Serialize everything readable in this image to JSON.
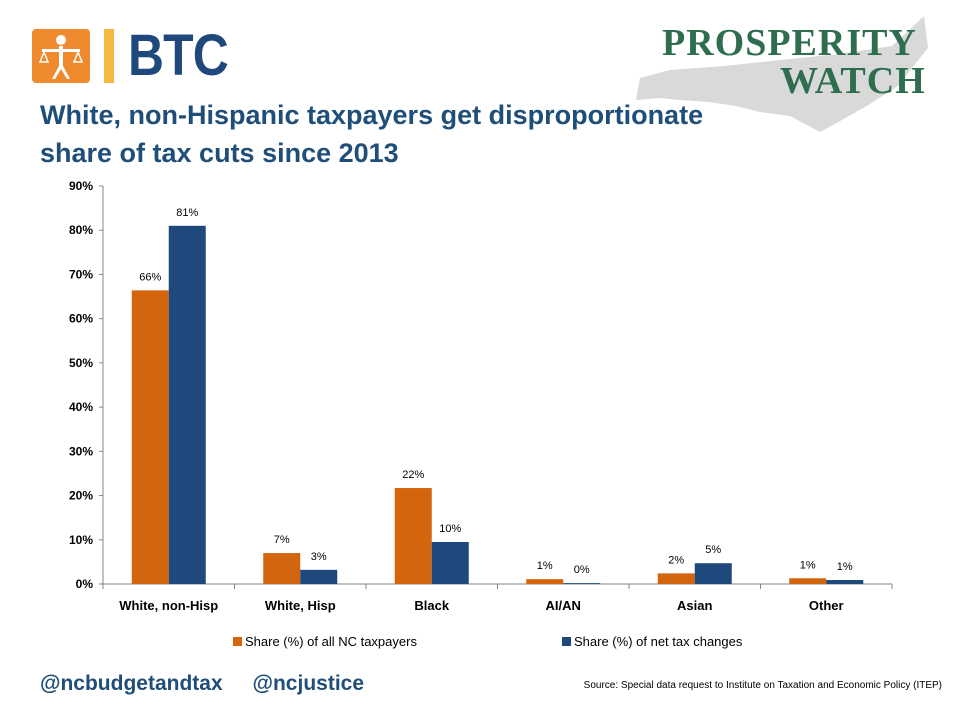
{
  "logos": {
    "btc_text": "BTC",
    "prosperity_line1": "PROSPERITY",
    "prosperity_line2": "WATCH"
  },
  "title": "White, non-Hispanic taxpayers get disproportionate share of tax cuts since 2013",
  "chart_data": {
    "type": "bar",
    "categories": [
      "White, non-Hisp",
      "White, Hisp",
      "Black",
      "AI/AN",
      "Asian",
      "Other"
    ],
    "series": [
      {
        "name": "Share (%) of all NC taxpayers",
        "color": "#d4650f",
        "values": [
          66.4,
          7,
          21.7,
          1.1,
          2.4,
          1.3
        ],
        "labels": [
          "66%",
          "7%",
          "22%",
          "1%",
          "2%",
          "1%"
        ]
      },
      {
        "name": "Share (%) of net tax changes",
        "color": "#1f497d",
        "values": [
          81,
          3.2,
          9.5,
          0.2,
          4.7,
          0.9
        ],
        "labels": [
          "81%",
          "3%",
          "10%",
          "0%",
          "5%",
          "1%"
        ]
      }
    ],
    "ylim": [
      0,
      90
    ],
    "yticks": [
      "0%",
      "10%",
      "20%",
      "30%",
      "40%",
      "50%",
      "60%",
      "70%",
      "80%",
      "90%"
    ],
    "grid": false,
    "legend_position": "bottom"
  },
  "footer": {
    "handle1": "@ncbudgetandtax",
    "handle2": "@ncjustice",
    "source": "Source: Special data request to Institute on Taxation and Economic Policy (ITEP)"
  }
}
